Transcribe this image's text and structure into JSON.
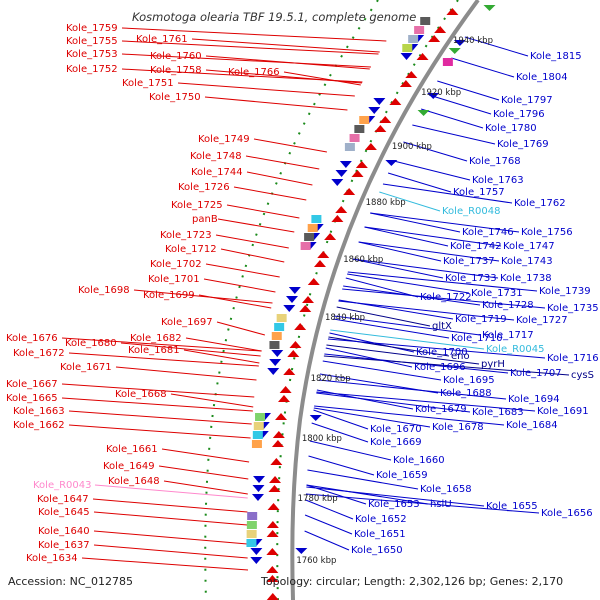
{
  "title": "Kosmotoga olearia TBF 19.5.1, complete genome",
  "accession": "Accession: NC_012785",
  "topology": "Topology: circular; Length: 2,302,126 bp; Genes: 2,170",
  "colors": {
    "forward": "#dd0000",
    "reverse": "#0000cc",
    "forward_rna": "#ff88cc",
    "reverse_rna": "#33bbdd",
    "backbone": "#888888",
    "tick": "#1a8a1a"
  },
  "kbp_labels": [
    {
      "text": "1940 kbp"
    },
    {
      "text": "1920 kbp"
    },
    {
      "text": "1900 kbp"
    },
    {
      "text": "1880 kbp"
    },
    {
      "text": "1860 kbp"
    },
    {
      "text": "1840 kbp"
    },
    {
      "text": "1820 kbp"
    },
    {
      "text": "1800 kbp"
    },
    {
      "text": "1780 kbp"
    },
    {
      "text": "1760 kbp"
    }
  ],
  "left_labels": [
    {
      "text": "Kole_1759"
    },
    {
      "text": "Kole_1761"
    },
    {
      "text": "Kole_1755"
    },
    {
      "text": "Kole_1760"
    },
    {
      "text": "Kole_1753"
    },
    {
      "text": "Kole_1758"
    },
    {
      "text": "Kole_1752"
    },
    {
      "text": "Kole_1766"
    },
    {
      "text": "Kole_1751"
    },
    {
      "text": "Kole_1750"
    },
    {
      "text": "Kole_1749"
    },
    {
      "text": "Kole_1748"
    },
    {
      "text": "Kole_1744"
    },
    {
      "text": "Kole_1726"
    },
    {
      "text": "Kole_1725"
    },
    {
      "text": "panB"
    },
    {
      "text": "Kole_1723"
    },
    {
      "text": "Kole_1712"
    },
    {
      "text": "Kole_1702"
    },
    {
      "text": "Kole_1701"
    },
    {
      "text": "Kole_1698"
    },
    {
      "text": "Kole_1699"
    },
    {
      "text": "Kole_1697"
    },
    {
      "text": "Kole_1676"
    },
    {
      "text": "Kole_1682"
    },
    {
      "text": "Kole_1680"
    },
    {
      "text": "Kole_1672"
    },
    {
      "text": "Kole_1681"
    },
    {
      "text": "Kole_1671"
    },
    {
      "text": "Kole_1667"
    },
    {
      "text": "Kole_1668"
    },
    {
      "text": "Kole_1665"
    },
    {
      "text": "Kole_1663"
    },
    {
      "text": "Kole_1662"
    },
    {
      "text": "Kole_1661"
    },
    {
      "text": "Kole_1649"
    },
    {
      "text": "Kole_1648"
    },
    {
      "text": "Kole_R0043"
    },
    {
      "text": "Kole_1647"
    },
    {
      "text": "Kole_1645"
    },
    {
      "text": "Kole_1640"
    },
    {
      "text": "Kole_1637"
    },
    {
      "text": "Kole_1634"
    }
  ],
  "right_labels": [
    {
      "text": "Kole_1815"
    },
    {
      "text": "Kole_1804"
    },
    {
      "text": "Kole_1797"
    },
    {
      "text": "Kole_1796"
    },
    {
      "text": "Kole_1780"
    },
    {
      "text": "Kole_1769"
    },
    {
      "text": "Kole_1768"
    },
    {
      "text": "Kole_1763"
    },
    {
      "text": "Kole_1757"
    },
    {
      "text": "Kole_1762"
    },
    {
      "text": "Kole_R0048"
    },
    {
      "text": "Kole_1746"
    },
    {
      "text": "Kole_1756"
    },
    {
      "text": "Kole_1742"
    },
    {
      "text": "Kole_1747"
    },
    {
      "text": "Kole_1737"
    },
    {
      "text": "Kole_1743"
    },
    {
      "text": "Kole_1733"
    },
    {
      "text": "Kole_1738"
    },
    {
      "text": "Kole_1731"
    },
    {
      "text": "Kole_1739"
    },
    {
      "text": "Kole_1722"
    },
    {
      "text": "Kole_1728"
    },
    {
      "text": "Kole_1735"
    },
    {
      "text": "Kole_1719"
    },
    {
      "text": "Kole_1727"
    },
    {
      "text": "gltX"
    },
    {
      "text": "Kole_1717"
    },
    {
      "text": "Kole_1710"
    },
    {
      "text": "Kole_R0045"
    },
    {
      "text": "Kole_1700"
    },
    {
      "text": "eno"
    },
    {
      "text": "Kole_1716"
    },
    {
      "text": "pyrH"
    },
    {
      "text": "Kole_1707"
    },
    {
      "text": "cysS"
    },
    {
      "text": "Kole_1696"
    },
    {
      "text": "Kole_1695"
    },
    {
      "text": "Kole_1688"
    },
    {
      "text": "Kole_1694"
    },
    {
      "text": "Kole_1679"
    },
    {
      "text": "Kole_1683"
    },
    {
      "text": "Kole_1691"
    },
    {
      "text": "Kole_1678"
    },
    {
      "text": "Kole_1684"
    },
    {
      "text": "Kole_1670"
    },
    {
      "text": "Kole_1669"
    },
    {
      "text": "Kole_1660"
    },
    {
      "text": "Kole_1659"
    },
    {
      "text": "Kole_1658"
    },
    {
      "text": "Kole_1653"
    },
    {
      "text": "hslU"
    },
    {
      "text": "Kole_1655"
    },
    {
      "text": "Kole_1656"
    },
    {
      "text": "Kole_1652"
    },
    {
      "text": "Kole_1651"
    },
    {
      "text": "Kole_1650"
    }
  ]
}
